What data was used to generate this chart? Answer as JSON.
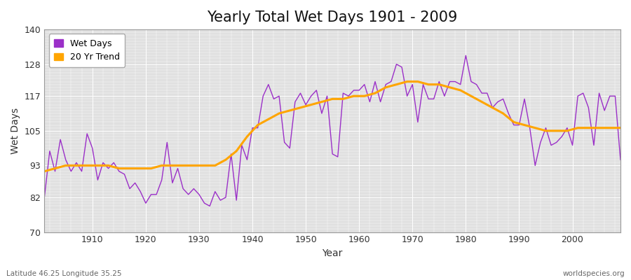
{
  "title": "Yearly Total Wet Days 1901 - 2009",
  "xlabel": "Year",
  "ylabel": "Wet Days",
  "subtitle_left": "Latitude 46.25 Longitude 35.25",
  "subtitle_right": "worldspecies.org",
  "legend_wet": "Wet Days",
  "legend_trend": "20 Yr Trend",
  "wet_color": "#9B30C8",
  "trend_color": "#FFA500",
  "fig_bg_color": "#FFFFFF",
  "plot_bg_color": "#E0E0E0",
  "grid_color": "#FFFFFF",
  "ylim": [
    70,
    140
  ],
  "yticks": [
    70,
    82,
    93,
    105,
    117,
    128,
    140
  ],
  "xlim": [
    1901,
    2009
  ],
  "xticks": [
    1910,
    1920,
    1930,
    1940,
    1950,
    1960,
    1970,
    1980,
    1990,
    2000
  ],
  "years": [
    1901,
    1902,
    1903,
    1904,
    1905,
    1906,
    1907,
    1908,
    1909,
    1910,
    1911,
    1912,
    1913,
    1914,
    1915,
    1916,
    1917,
    1918,
    1919,
    1920,
    1921,
    1922,
    1923,
    1924,
    1925,
    1926,
    1927,
    1928,
    1929,
    1930,
    1931,
    1932,
    1933,
    1934,
    1935,
    1936,
    1937,
    1938,
    1939,
    1940,
    1941,
    1942,
    1943,
    1944,
    1945,
    1946,
    1947,
    1948,
    1949,
    1950,
    1951,
    1952,
    1953,
    1954,
    1955,
    1956,
    1957,
    1958,
    1959,
    1960,
    1961,
    1962,
    1963,
    1964,
    1965,
    1966,
    1967,
    1968,
    1969,
    1970,
    1971,
    1972,
    1973,
    1974,
    1975,
    1976,
    1977,
    1978,
    1979,
    1980,
    1981,
    1982,
    1983,
    1984,
    1985,
    1986,
    1987,
    1988,
    1989,
    1990,
    1991,
    1992,
    1993,
    1994,
    1995,
    1996,
    1997,
    1998,
    1999,
    2000,
    2001,
    2002,
    2003,
    2004,
    2005,
    2006,
    2007,
    2008,
    2009
  ],
  "wet_days": [
    82,
    98,
    91,
    102,
    95,
    91,
    94,
    91,
    104,
    99,
    88,
    94,
    92,
    94,
    91,
    90,
    85,
    87,
    84,
    80,
    83,
    83,
    88,
    101,
    87,
    92,
    85,
    83,
    85,
    83,
    80,
    79,
    84,
    81,
    82,
    97,
    81,
    100,
    95,
    106,
    106,
    117,
    121,
    116,
    117,
    101,
    99,
    115,
    118,
    114,
    117,
    119,
    111,
    117,
    97,
    96,
    118,
    117,
    119,
    119,
    121,
    115,
    122,
    115,
    121,
    122,
    128,
    127,
    117,
    121,
    108,
    121,
    116,
    116,
    122,
    117,
    122,
    122,
    121,
    131,
    122,
    121,
    118,
    118,
    113,
    115,
    116,
    111,
    107,
    107,
    116,
    106,
    93,
    101,
    106,
    100,
    101,
    103,
    106,
    100,
    117,
    118,
    113,
    100,
    118,
    112,
    117,
    117,
    95
  ],
  "trend_years": [
    1901,
    1903,
    1905,
    1907,
    1909,
    1911,
    1913,
    1915,
    1917,
    1919,
    1921,
    1923,
    1925,
    1927,
    1929,
    1931,
    1933,
    1935,
    1937,
    1939,
    1941,
    1943,
    1945,
    1947,
    1949,
    1951,
    1953,
    1955,
    1957,
    1959,
    1961,
    1963,
    1965,
    1967,
    1969,
    1971,
    1973,
    1975,
    1977,
    1979,
    1981,
    1983,
    1985,
    1987,
    1989,
    1991,
    1993,
    1995,
    1997,
    1999,
    2001,
    2003,
    2005,
    2007,
    2009
  ],
  "trend_values": [
    91,
    92,
    93,
    93,
    93,
    93,
    93,
    92,
    92,
    92,
    92,
    93,
    93,
    93,
    93,
    93,
    93,
    95,
    98,
    103,
    107,
    109,
    111,
    112,
    113,
    114,
    115,
    116,
    116,
    117,
    117,
    118,
    120,
    121,
    122,
    122,
    121,
    121,
    120,
    119,
    117,
    115,
    113,
    111,
    108,
    107,
    106,
    105,
    105,
    105,
    106,
    106,
    106,
    106,
    106
  ]
}
